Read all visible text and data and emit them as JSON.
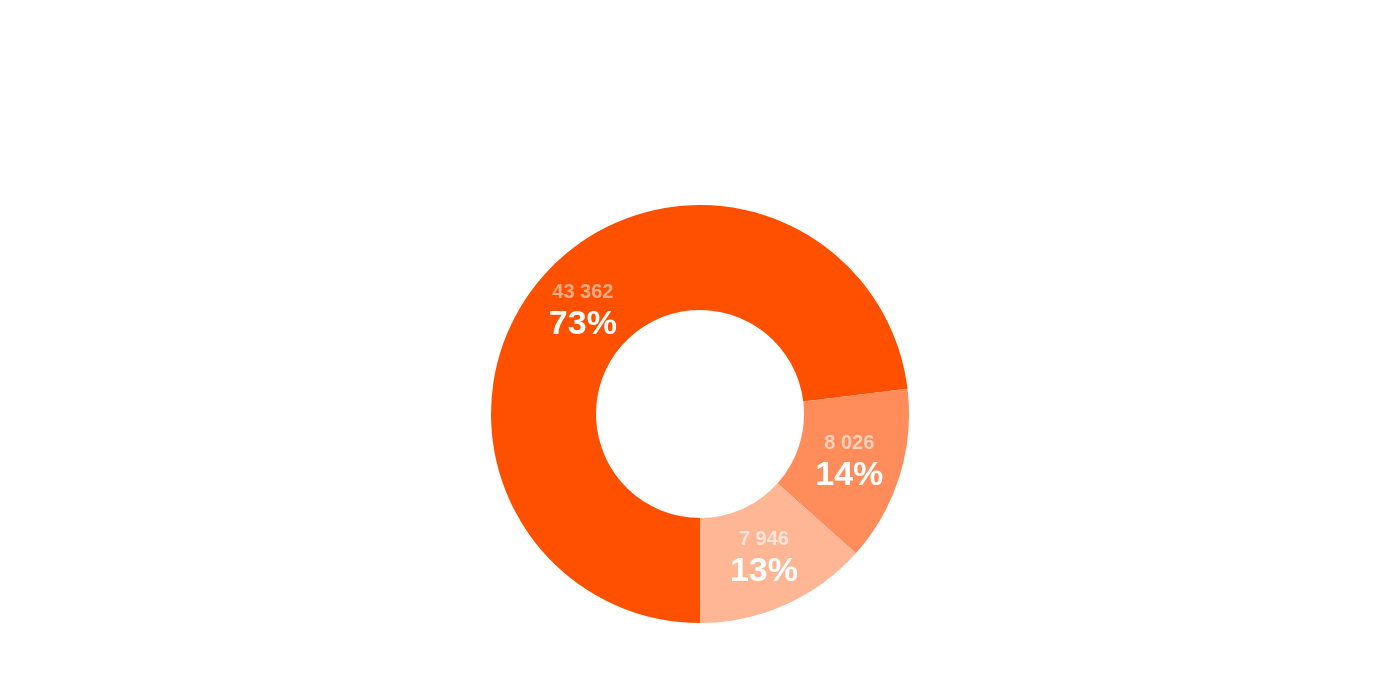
{
  "chart_data": {
    "type": "donut",
    "categories": [
      null,
      null,
      null
    ],
    "values": [
      43362,
      8026,
      7946
    ],
    "colors": [
      "#ff5000",
      "#ff8c5a",
      "#ffb694"
    ],
    "value_labels": [
      "43 362",
      "8 026",
      "7 946"
    ],
    "annotations": [
      "73%",
      "14%",
      "13%"
    ]
  }
}
